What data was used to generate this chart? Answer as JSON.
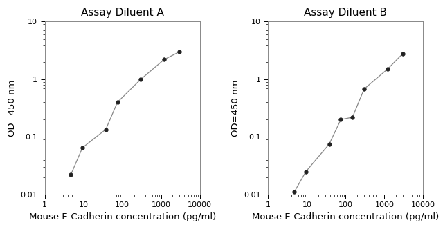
{
  "panel_A": {
    "title": "Assay Diluent A",
    "x": [
      4.688,
      9.375,
      37.5,
      75,
      300,
      1200,
      3000
    ],
    "y": [
      0.022,
      0.065,
      0.135,
      0.4,
      1.0,
      2.2,
      3.0
    ],
    "xlim": [
      1,
      10000
    ],
    "ylim": [
      0.01,
      10
    ],
    "xlabel": "Mouse E-Cadherin concentration (pg/ml)",
    "ylabel": "OD=450 nm"
  },
  "panel_B": {
    "title": "Assay Diluent B",
    "x": [
      4.688,
      9.375,
      37.5,
      75,
      150,
      300,
      1200,
      3000
    ],
    "y": [
      0.011,
      0.025,
      0.075,
      0.2,
      0.22,
      0.68,
      1.5,
      2.8
    ],
    "xlim": [
      1,
      10000
    ],
    "ylim": [
      0.01,
      10
    ],
    "xlabel": "Mouse E-Cadherin concentration (pg/ml)",
    "ylabel": "OD=450 nm"
  },
  "line_color": "#888888",
  "marker_color": "#222222",
  "marker_style": "o",
  "marker_size": 4,
  "line_width": 0.9,
  "background_color": "#ffffff",
  "title_fontsize": 11,
  "label_fontsize": 9.5,
  "tick_fontsize": 8
}
